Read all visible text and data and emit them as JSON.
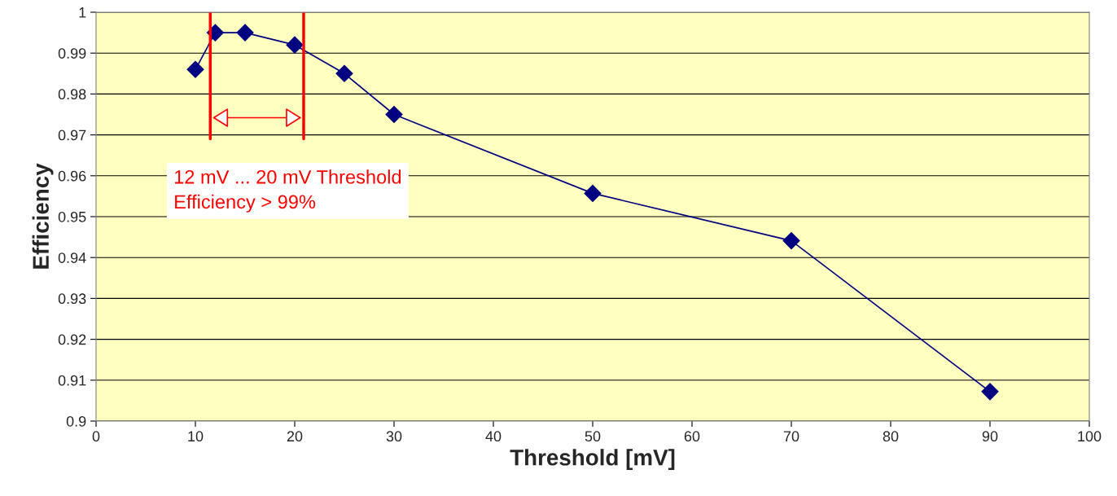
{
  "chart_data": {
    "type": "line",
    "xlabel": "Threshold [mV]",
    "ylabel": "Efficiency",
    "x": [
      10,
      12,
      15,
      20,
      25,
      30,
      50,
      70,
      90
    ],
    "series": [
      {
        "color": "#000080",
        "values": [
          0.986,
          0.995,
          0.995,
          0.992,
          0.985,
          0.975,
          0.9557,
          0.9441,
          0.9072
        ]
      }
    ],
    "xlim": [
      0,
      100
    ],
    "xticks": [
      0,
      10,
      20,
      30,
      40,
      50,
      60,
      70,
      80,
      90,
      100
    ],
    "ylim": [
      0.9,
      1
    ],
    "yticks": [
      0.9,
      0.91,
      0.92,
      0.93,
      0.94,
      0.95,
      0.96,
      0.97,
      0.98,
      0.99,
      1
    ],
    "grid": "y",
    "marker": "diamond",
    "line_style": "solid",
    "ref_lines": [
      {
        "axis": "x",
        "value": 11.5,
        "color": "#ff0000"
      },
      {
        "axis": "x",
        "value": 20.9,
        "color": "#ff0000"
      }
    ],
    "annotations": [
      "12 mV ... 20 mV Threshold\nEfficiency > 99%"
    ]
  }
}
